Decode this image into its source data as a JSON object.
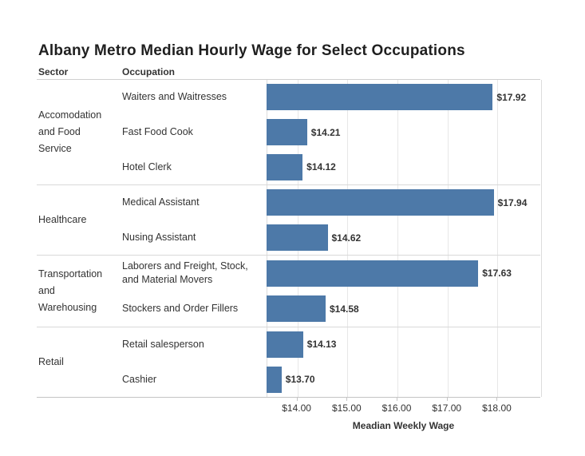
{
  "title": "Albany Metro Median Hourly Wage for Select Occupations",
  "columns": {
    "sector": "Sector",
    "occupation": "Occupation"
  },
  "chart_data": {
    "type": "bar",
    "orientation": "horizontal",
    "title": "Albany Metro Median Hourly Wage for Select Occupations",
    "xlabel": "Meadian Weekly Wage",
    "bar_color": "#4d79a8",
    "grid": true,
    "legend": "none",
    "axis": {
      "min": 13.4,
      "max": 18.87,
      "ticks": [
        14,
        15,
        16,
        17,
        18
      ],
      "tick_labels": [
        "$14.00",
        "$15.00",
        "$16.00",
        "$17.00",
        "$18.00"
      ]
    },
    "sections": [
      {
        "sector_label": "Accomodation\nand Food\nService",
        "rows": [
          {
            "occupation": "Waiters and Waitresses",
            "value": 17.92,
            "value_label": "$17.92"
          },
          {
            "occupation": "Fast Food Cook",
            "value": 14.21,
            "value_label": "$14.21"
          },
          {
            "occupation": "Hotel Clerk",
            "value": 14.12,
            "value_label": "$14.12"
          }
        ]
      },
      {
        "sector_label": "Healthcare",
        "rows": [
          {
            "occupation": "Medical Assistant",
            "value": 17.94,
            "value_label": "$17.94"
          },
          {
            "occupation": "Nusing Assistant",
            "value": 14.62,
            "value_label": "$14.62"
          }
        ]
      },
      {
        "sector_label": "Transportation\nand\nWarehousing",
        "rows": [
          {
            "occupation": "Laborers and Freight, Stock,\nand Material Movers",
            "value": 17.63,
            "value_label": "$17.63"
          },
          {
            "occupation": "Stockers and Order Fillers",
            "value": 14.58,
            "value_label": "$14.58"
          }
        ]
      },
      {
        "sector_label": "Retail",
        "rows": [
          {
            "occupation": "Retail salesperson",
            "value": 14.13,
            "value_label": "$14.13"
          },
          {
            "occupation": "Cashier",
            "value": 13.7,
            "value_label": "$13.70"
          }
        ]
      }
    ]
  }
}
